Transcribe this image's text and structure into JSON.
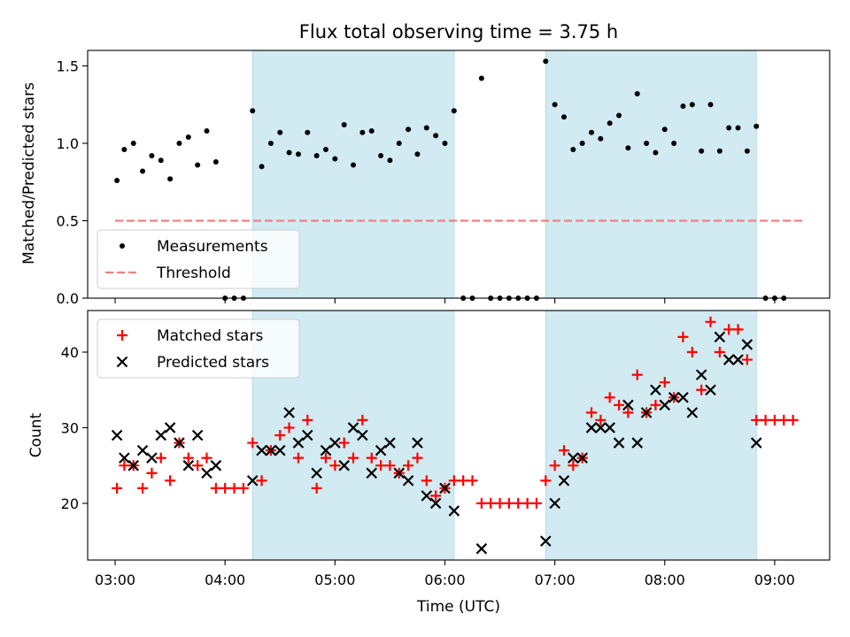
{
  "chart_data": [
    {
      "type": "scatter",
      "title": "Flux total observing time = 3.75 h",
      "xlabel": "",
      "ylabel": "Matched/Predicted stars",
      "ylim": [
        0.0,
        1.6
      ],
      "yticks": [
        "0.0",
        "0.5",
        "1.0",
        "1.5"
      ],
      "grid": false,
      "legend_position": "lower-left",
      "shaded_intervals": [
        [
          "04:15",
          "06:05"
        ],
        [
          "06:55",
          "08:50"
        ]
      ],
      "shade_color": "#add8e6",
      "series": [
        {
          "name": "Measurements",
          "marker": "dot",
          "color": "#000000",
          "points": [
            [
              "03:01",
              0.76
            ],
            [
              "03:05",
              0.96
            ],
            [
              "03:10",
              1.0
            ],
            [
              "03:15",
              0.82
            ],
            [
              "03:20",
              0.92
            ],
            [
              "03:25",
              0.89
            ],
            [
              "03:30",
              0.77
            ],
            [
              "03:35",
              1.0
            ],
            [
              "03:40",
              1.04
            ],
            [
              "03:45",
              0.86
            ],
            [
              "03:50",
              1.08
            ],
            [
              "03:55",
              0.88
            ],
            [
              "04:00",
              0.0
            ],
            [
              "04:05",
              0.0
            ],
            [
              "04:10",
              0.0
            ],
            [
              "04:15",
              1.21
            ],
            [
              "04:20",
              0.85
            ],
            [
              "04:25",
              1.0
            ],
            [
              "04:30",
              1.07
            ],
            [
              "04:35",
              0.94
            ],
            [
              "04:40",
              0.93
            ],
            [
              "04:45",
              1.07
            ],
            [
              "04:50",
              0.92
            ],
            [
              "04:55",
              0.96
            ],
            [
              "05:00",
              0.9
            ],
            [
              "05:05",
              1.12
            ],
            [
              "05:10",
              0.86
            ],
            [
              "05:15",
              1.07
            ],
            [
              "05:20",
              1.08
            ],
            [
              "05:25",
              0.92
            ],
            [
              "05:30",
              0.89
            ],
            [
              "05:35",
              1.0
            ],
            [
              "05:40",
              1.09
            ],
            [
              "05:45",
              0.93
            ],
            [
              "05:50",
              1.1
            ],
            [
              "05:55",
              1.05
            ],
            [
              "06:00",
              1.0
            ],
            [
              "06:05",
              1.21
            ],
            [
              "06:10",
              0.0
            ],
            [
              "06:15",
              0.0
            ],
            [
              "06:20",
              1.42
            ],
            [
              "06:25",
              0.0
            ],
            [
              "06:30",
              0.0
            ],
            [
              "06:35",
              0.0
            ],
            [
              "06:40",
              0.0
            ],
            [
              "06:45",
              0.0
            ],
            [
              "06:50",
              0.0
            ],
            [
              "06:55",
              1.53
            ],
            [
              "07:00",
              1.25
            ],
            [
              "07:05",
              1.17
            ],
            [
              "07:10",
              0.96
            ],
            [
              "07:15",
              1.0
            ],
            [
              "07:20",
              1.07
            ],
            [
              "07:25",
              1.03
            ],
            [
              "07:30",
              1.13
            ],
            [
              "07:35",
              1.18
            ],
            [
              "07:40",
              0.97
            ],
            [
              "07:45",
              1.32
            ],
            [
              "07:50",
              1.0
            ],
            [
              "07:55",
              0.94
            ],
            [
              "08:00",
              1.09
            ],
            [
              "08:05",
              1.0
            ],
            [
              "08:10",
              1.24
            ],
            [
              "08:15",
              1.25
            ],
            [
              "08:20",
              0.95
            ],
            [
              "08:25",
              1.25
            ],
            [
              "08:30",
              0.95
            ],
            [
              "08:35",
              1.1
            ],
            [
              "08:40",
              1.1
            ],
            [
              "08:45",
              0.95
            ],
            [
              "08:50",
              1.11
            ],
            [
              "08:55",
              0.0
            ],
            [
              "09:00",
              0.0
            ],
            [
              "09:05",
              0.0
            ]
          ]
        },
        {
          "name": "Threshold",
          "line_style": "dashed",
          "color": "#f08080",
          "points": [
            [
              "03:00",
              0.5
            ],
            [
              "09:15",
              0.5
            ]
          ]
        }
      ]
    },
    {
      "type": "scatter",
      "title": "",
      "xlabel": "Time (UTC)",
      "ylabel": "Count",
      "ylim": [
        12.5,
        45.5
      ],
      "yticks": [
        "20",
        "30",
        "40"
      ],
      "xticks": [
        "03:00",
        "04:00",
        "05:00",
        "06:00",
        "07:00",
        "08:00",
        "09:00"
      ],
      "xlim": [
        "02:45",
        "09:30"
      ],
      "grid": false,
      "legend_position": "upper-left",
      "shaded_intervals": [
        [
          "04:15",
          "06:05"
        ],
        [
          "06:55",
          "08:50"
        ]
      ],
      "shade_color": "#add8e6",
      "series": [
        {
          "name": "Matched stars",
          "marker": "plus",
          "color": "#ff0000",
          "points": [
            [
              "03:01",
              22
            ],
            [
              "03:05",
              25
            ],
            [
              "03:10",
              25
            ],
            [
              "03:15",
              22
            ],
            [
              "03:20",
              24
            ],
            [
              "03:25",
              26
            ],
            [
              "03:30",
              23
            ],
            [
              "03:35",
              28
            ],
            [
              "03:40",
              26
            ],
            [
              "03:45",
              25
            ],
            [
              "03:50",
              26
            ],
            [
              "03:55",
              22
            ],
            [
              "04:00",
              22
            ],
            [
              "04:05",
              22
            ],
            [
              "04:10",
              22
            ],
            [
              "04:15",
              28
            ],
            [
              "04:20",
              23
            ],
            [
              "04:25",
              27
            ],
            [
              "04:30",
              29
            ],
            [
              "04:35",
              30
            ],
            [
              "04:40",
              26
            ],
            [
              "04:45",
              31
            ],
            [
              "04:50",
              22
            ],
            [
              "04:55",
              26
            ],
            [
              "05:00",
              25
            ],
            [
              "05:05",
              28
            ],
            [
              "05:10",
              26
            ],
            [
              "05:15",
              31
            ],
            [
              "05:20",
              26
            ],
            [
              "05:25",
              25
            ],
            [
              "05:30",
              25
            ],
            [
              "05:35",
              24
            ],
            [
              "05:40",
              25
            ],
            [
              "05:45",
              26
            ],
            [
              "05:50",
              23
            ],
            [
              "05:55",
              21
            ],
            [
              "06:00",
              22
            ],
            [
              "06:05",
              23
            ],
            [
              "06:10",
              23
            ],
            [
              "06:15",
              23
            ],
            [
              "06:20",
              20
            ],
            [
              "06:25",
              20
            ],
            [
              "06:30",
              20
            ],
            [
              "06:35",
              20
            ],
            [
              "06:40",
              20
            ],
            [
              "06:45",
              20
            ],
            [
              "06:50",
              20
            ],
            [
              "06:55",
              23
            ],
            [
              "07:00",
              25
            ],
            [
              "07:05",
              27
            ],
            [
              "07:10",
              25
            ],
            [
              "07:15",
              26
            ],
            [
              "07:20",
              32
            ],
            [
              "07:25",
              31
            ],
            [
              "07:30",
              34
            ],
            [
              "07:35",
              33
            ],
            [
              "07:40",
              32
            ],
            [
              "07:45",
              37
            ],
            [
              "07:50",
              32
            ],
            [
              "07:55",
              33
            ],
            [
              "08:00",
              36
            ],
            [
              "08:05",
              34
            ],
            [
              "08:10",
              42
            ],
            [
              "08:15",
              40
            ],
            [
              "08:20",
              35
            ],
            [
              "08:25",
              44
            ],
            [
              "08:30",
              40
            ],
            [
              "08:35",
              43
            ],
            [
              "08:40",
              43
            ],
            [
              "08:45",
              39
            ],
            [
              "08:50",
              31
            ],
            [
              "08:55",
              31
            ],
            [
              "09:00",
              31
            ],
            [
              "09:05",
              31
            ],
            [
              "09:10",
              31
            ]
          ]
        },
        {
          "name": "Predicted stars",
          "marker": "x",
          "color": "#000000",
          "points": [
            [
              "03:01",
              29
            ],
            [
              "03:05",
              26
            ],
            [
              "03:10",
              25
            ],
            [
              "03:15",
              27
            ],
            [
              "03:20",
              26
            ],
            [
              "03:25",
              29
            ],
            [
              "03:30",
              30
            ],
            [
              "03:35",
              28
            ],
            [
              "03:40",
              25
            ],
            [
              "03:45",
              29
            ],
            [
              "03:50",
              24
            ],
            [
              "03:55",
              25
            ],
            [
              "04:15",
              23
            ],
            [
              "04:20",
              27
            ],
            [
              "04:25",
              27
            ],
            [
              "04:30",
              27
            ],
            [
              "04:35",
              32
            ],
            [
              "04:40",
              28
            ],
            [
              "04:45",
              29
            ],
            [
              "04:50",
              24
            ],
            [
              "04:55",
              27
            ],
            [
              "05:00",
              28
            ],
            [
              "05:05",
              25
            ],
            [
              "05:10",
              30
            ],
            [
              "05:15",
              29
            ],
            [
              "05:20",
              24
            ],
            [
              "05:25",
              27
            ],
            [
              "05:30",
              28
            ],
            [
              "05:35",
              24
            ],
            [
              "05:40",
              23
            ],
            [
              "05:45",
              28
            ],
            [
              "05:50",
              21
            ],
            [
              "05:55",
              20
            ],
            [
              "06:00",
              22
            ],
            [
              "06:05",
              19
            ],
            [
              "06:20",
              14
            ],
            [
              "06:55",
              15
            ],
            [
              "07:00",
              20
            ],
            [
              "07:05",
              23
            ],
            [
              "07:10",
              26
            ],
            [
              "07:15",
              26
            ],
            [
              "07:20",
              30
            ],
            [
              "07:25",
              30
            ],
            [
              "07:30",
              30
            ],
            [
              "07:35",
              28
            ],
            [
              "07:40",
              33
            ],
            [
              "07:45",
              28
            ],
            [
              "07:50",
              32
            ],
            [
              "07:55",
              35
            ],
            [
              "08:00",
              33
            ],
            [
              "08:05",
              34
            ],
            [
              "08:10",
              34
            ],
            [
              "08:15",
              32
            ],
            [
              "08:20",
              37
            ],
            [
              "08:25",
              35
            ],
            [
              "08:30",
              42
            ],
            [
              "08:35",
              39
            ],
            [
              "08:40",
              39
            ],
            [
              "08:45",
              41
            ],
            [
              "08:50",
              28
            ]
          ]
        }
      ]
    }
  ]
}
